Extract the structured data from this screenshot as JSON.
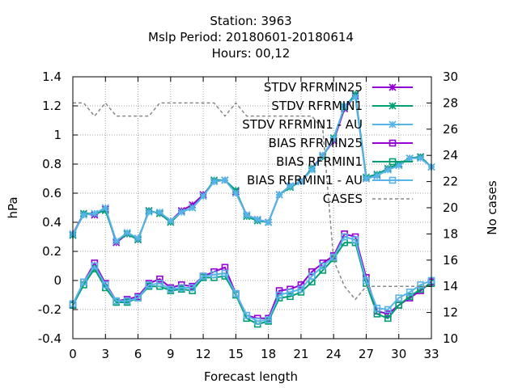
{
  "chart_data": {
    "type": "line",
    "title_lines": [
      "Station:      3963",
      "Mslp   Period: 20180601-20180614",
      "Hours:  00,12"
    ],
    "xlabel": "Forecast length",
    "ylabel": "hPa",
    "y2label": "No cases",
    "xlim": [
      0,
      33
    ],
    "ylim": [
      -0.4,
      1.4
    ],
    "y2lim": [
      10,
      30
    ],
    "x_ticks": [
      "0",
      "3",
      "6",
      "9",
      "12",
      "15",
      "18",
      "21",
      "24",
      "27",
      "30",
      "33"
    ],
    "y_ticks": [
      "-0.4",
      "-0.2",
      "0",
      "0.2",
      "0.4",
      "0.6",
      "0.8",
      "1",
      "1.2",
      "1.4"
    ],
    "y2_ticks": [
      "10",
      "12",
      "14",
      "16",
      "18",
      "20",
      "22",
      "24",
      "26",
      "28",
      "30"
    ],
    "grid": true,
    "legend_position": "top-right",
    "x": [
      0,
      1,
      2,
      3,
      4,
      5,
      6,
      7,
      8,
      9,
      10,
      11,
      12,
      13,
      14,
      15,
      16,
      17,
      18,
      19,
      20,
      21,
      22,
      23,
      24,
      25,
      26,
      27,
      28,
      29,
      30,
      31,
      32,
      33
    ],
    "series": [
      {
        "name": "STDV RFRMIN25",
        "color": "#9400d3",
        "marker": "x",
        "axis": "y",
        "values": [
          0.32,
          0.46,
          0.45,
          0.49,
          0.26,
          0.32,
          0.28,
          0.48,
          0.46,
          0.41,
          0.48,
          0.52,
          0.59,
          0.68,
          0.69,
          0.61,
          0.45,
          0.42,
          0.4,
          0.59,
          0.65,
          0.68,
          0.77,
          0.86,
          0.96,
          1.18,
          1.27,
          0.7,
          0.72,
          0.77,
          0.8,
          0.84,
          0.85,
          0.78
        ]
      },
      {
        "name": "STDV RFRMIN1",
        "color": "#009e73",
        "marker": "x",
        "axis": "y",
        "values": [
          0.31,
          0.46,
          0.46,
          0.48,
          0.27,
          0.32,
          0.28,
          0.48,
          0.46,
          0.4,
          0.47,
          0.5,
          0.58,
          0.69,
          0.69,
          0.62,
          0.44,
          0.41,
          0.4,
          0.59,
          0.64,
          0.68,
          0.77,
          0.85,
          0.98,
          1.19,
          1.28,
          0.71,
          0.73,
          0.77,
          0.8,
          0.84,
          0.85,
          0.78
        ]
      },
      {
        "name": "STDV RFRMIN1 - AU",
        "color": "#56b4e9",
        "marker": "x",
        "axis": "y",
        "values": [
          0.32,
          0.45,
          0.46,
          0.5,
          0.27,
          0.33,
          0.29,
          0.47,
          0.47,
          0.41,
          0.47,
          0.5,
          0.58,
          0.68,
          0.69,
          0.6,
          0.45,
          0.42,
          0.4,
          0.59,
          0.65,
          0.68,
          0.76,
          0.86,
          0.97,
          1.2,
          1.26,
          0.7,
          0.72,
          0.76,
          0.79,
          0.84,
          0.84,
          0.78
        ]
      },
      {
        "name": "BIAS RFRMIN25",
        "color": "#9400d3",
        "marker": "square",
        "axis": "y",
        "values": [
          -0.17,
          -0.01,
          0.12,
          -0.02,
          -0.14,
          -0.13,
          -0.11,
          -0.02,
          0.01,
          -0.05,
          -0.03,
          -0.04,
          0.03,
          0.06,
          0.09,
          -0.09,
          -0.24,
          -0.26,
          -0.26,
          -0.07,
          -0.06,
          -0.03,
          0.06,
          0.12,
          0.17,
          0.32,
          0.3,
          0.02,
          -0.21,
          -0.23,
          -0.17,
          -0.12,
          -0.07,
          -0.01
        ]
      },
      {
        "name": "BIAS RFRMIN1",
        "color": "#009e73",
        "marker": "square",
        "axis": "y",
        "values": [
          -0.17,
          -0.03,
          0.08,
          -0.05,
          -0.15,
          -0.15,
          -0.12,
          -0.04,
          -0.04,
          -0.07,
          -0.06,
          -0.07,
          0.02,
          0.02,
          0.03,
          -0.1,
          -0.26,
          -0.3,
          -0.28,
          -0.12,
          -0.11,
          -0.08,
          -0.01,
          0.07,
          0.15,
          0.26,
          0.26,
          -0.02,
          -0.23,
          -0.26,
          -0.17,
          -0.11,
          -0.06,
          -0.02
        ]
      },
      {
        "name": "BIAS RFRMIN1 - AU",
        "color": "#56b4e9",
        "marker": "square",
        "axis": "y",
        "values": [
          -0.16,
          -0.01,
          0.1,
          -0.03,
          -0.14,
          -0.14,
          -0.12,
          -0.03,
          -0.02,
          -0.06,
          -0.05,
          -0.05,
          0.03,
          0.04,
          0.05,
          -0.09,
          -0.24,
          -0.28,
          -0.27,
          -0.1,
          -0.08,
          -0.06,
          0.03,
          0.1,
          0.16,
          0.3,
          0.28,
          0.0,
          -0.19,
          -0.2,
          -0.12,
          -0.08,
          -0.03,
          0.0
        ]
      },
      {
        "name": "CASES",
        "color": "#888888",
        "marker": "none",
        "dashed": true,
        "axis": "y2",
        "values": [
          28,
          28,
          27,
          28,
          27,
          27,
          27,
          27,
          28,
          28,
          28,
          28,
          28,
          28,
          27,
          28,
          27,
          27,
          27,
          27,
          27,
          27,
          27,
          26,
          16,
          14,
          13,
          14,
          14,
          14,
          14,
          14,
          14,
          14
        ]
      }
    ]
  }
}
